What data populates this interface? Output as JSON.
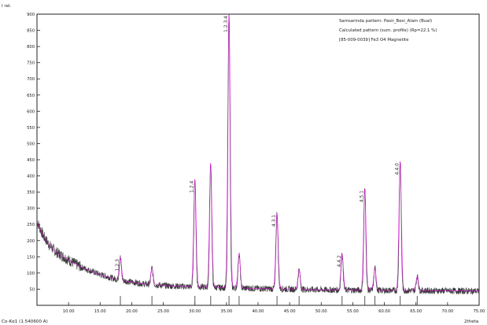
{
  "chart_data": {
    "type": "line",
    "ylabel": "I rel.",
    "xlabel": "2theta",
    "radiation_label": "Co-Kα1 (1.540600 A)",
    "xlim": [
      5.0,
      75.0
    ],
    "ylim": [
      0,
      900
    ],
    "y_ticks": [
      50,
      100,
      150,
      200,
      250,
      300,
      350,
      400,
      450,
      500,
      550,
      600,
      650,
      700,
      750,
      800,
      850,
      900
    ],
    "y_tick_labels": [
      "50",
      "100",
      "150",
      "200",
      "250",
      "300",
      "350",
      "400",
      "450",
      "500",
      "550",
      "600",
      "650",
      "700",
      "750",
      "800",
      "850",
      "900"
    ],
    "x_ticks": [
      10,
      15,
      20,
      25,
      30,
      35,
      40,
      45,
      50,
      55,
      60,
      65,
      70,
      75
    ],
    "x_tick_labels": [
      "10.00",
      "15.00",
      "20.00",
      "25.00",
      "30.00",
      "35.00",
      "40.00",
      "45.00",
      "50.00",
      "55.00",
      "60.00",
      "65.00",
      "70.00",
      "75.00"
    ],
    "legend": {
      "placement": "top-right",
      "lines": [
        "Samsarinda pattern: Pasir_Besi_Alam (Bual)",
        "Calculated pattern (sum. profile) (Rp=22.1 %)",
        "[85-009-0039] Fe3 O4 Magnetite"
      ]
    },
    "background": {
      "points": [
        [
          5,
          260
        ],
        [
          6,
          215
        ],
        [
          7,
          185
        ],
        [
          8,
          165
        ],
        [
          10,
          140
        ],
        [
          12,
          118
        ],
        [
          15,
          95
        ],
        [
          18,
          78
        ],
        [
          22,
          66
        ],
        [
          26,
          60
        ],
        [
          30,
          57
        ],
        [
          40,
          52
        ],
        [
          50,
          48
        ],
        [
          60,
          46
        ],
        [
          70,
          45
        ],
        [
          75,
          44
        ]
      ]
    },
    "peaks": [
      {
        "two_theta": 18.2,
        "intensity": 148,
        "label": "1.2.3",
        "label_color": "#4a4a4a"
      },
      {
        "two_theta": 23.2,
        "intensity": 115,
        "label": "",
        "label_color": "#4a4a4a"
      },
      {
        "two_theta": 30.0,
        "intensity": 390,
        "label": "1.2.4",
        "label_color": "#7a3ea8"
      },
      {
        "two_theta": 32.5,
        "intensity": 440,
        "label": "",
        "label_color": "#7a3ea8"
      },
      {
        "two_theta": 35.4,
        "intensity": 900,
        "label": "1.2.3.4",
        "label_color": "#c0392b"
      },
      {
        "two_theta": 37.0,
        "intensity": 160,
        "label": "",
        "label_color": "#7a3ea8"
      },
      {
        "two_theta": 43.0,
        "intensity": 285,
        "label": "4.3.1",
        "label_color": "#7a3ea8"
      },
      {
        "two_theta": 46.5,
        "intensity": 110,
        "label": "",
        "label_color": "#7a3ea8"
      },
      {
        "two_theta": 53.3,
        "intensity": 160,
        "label": "4.4.2",
        "label_color": "#7a3ea8"
      },
      {
        "two_theta": 56.9,
        "intensity": 360,
        "label": "4.5.1",
        "label_color": "#7a3ea8"
      },
      {
        "two_theta": 58.5,
        "intensity": 115,
        "label": "",
        "label_color": "#7a3ea8"
      },
      {
        "two_theta": 62.5,
        "intensity": 445,
        "label": "4.4.0",
        "label_color": "#7a3ea8"
      },
      {
        "two_theta": 65.2,
        "intensity": 90,
        "label": "",
        "label_color": "#7a3ea8"
      }
    ],
    "grid": false,
    "colors": {
      "observed": "#3a3a3a",
      "calculated": "#ff00ff",
      "reference_stick": "#555555",
      "background_page": "#ffffff"
    }
  }
}
